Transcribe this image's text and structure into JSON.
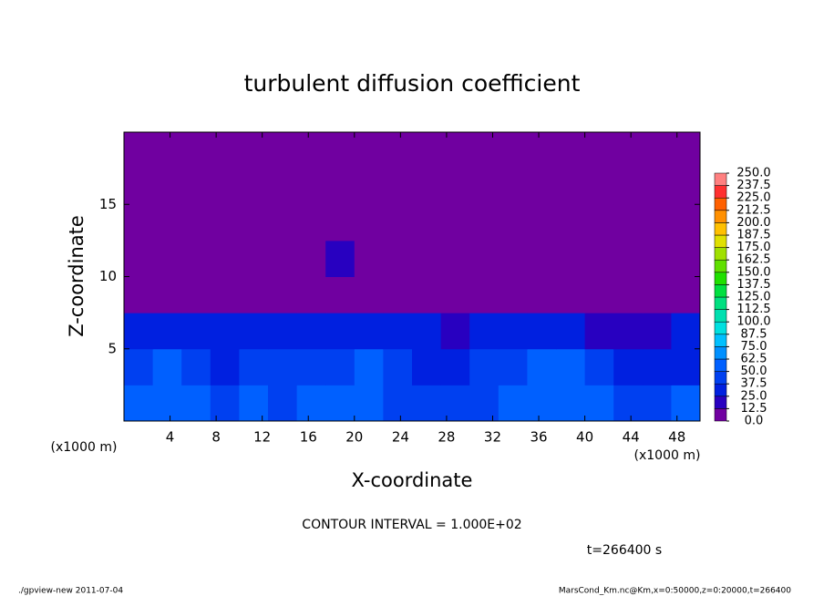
{
  "chart_data": {
    "type": "heatmap",
    "title": "turbulent diffusion coefficient",
    "x_label": "X-coordinate",
    "y_label": "Z-coordinate",
    "x_unit": "(x1000 m)",
    "y_unit": "(x1000 m)",
    "xlim": [
      0,
      50
    ],
    "ylim": [
      0,
      20
    ],
    "xticks": [
      4,
      8,
      12,
      16,
      20,
      24,
      28,
      32,
      36,
      40,
      44,
      48
    ],
    "yticks": [
      5,
      10,
      15
    ],
    "x": [
      1.25,
      3.75,
      6.25,
      8.75,
      11.25,
      13.75,
      16.25,
      18.75,
      21.25,
      23.75,
      26.25,
      28.75,
      31.25,
      33.75,
      36.25,
      38.75,
      41.25,
      43.75,
      46.25,
      48.75
    ],
    "y": [
      1.25,
      3.75,
      6.25,
      8.75,
      11.25,
      13.75,
      16.25,
      18.75
    ],
    "z": [
      [
        60,
        55,
        50,
        45,
        50,
        45,
        50,
        55,
        50,
        45,
        40,
        40,
        45,
        55,
        50,
        60,
        55,
        45,
        45,
        50
      ],
      [
        45,
        55,
        40,
        35,
        40,
        40,
        45,
        45,
        50,
        40,
        35,
        30,
        40,
        45,
        50,
        55,
        40,
        35,
        35,
        35
      ],
      [
        30,
        30,
        25,
        25,
        30,
        30,
        35,
        35,
        35,
        30,
        25,
        20,
        30,
        30,
        30,
        25,
        20,
        20,
        20,
        25
      ],
      [
        5,
        5,
        5,
        5,
        5,
        5,
        5,
        10,
        10,
        5,
        5,
        5,
        5,
        5,
        5,
        5,
        5,
        5,
        5,
        5
      ],
      [
        5,
        5,
        5,
        5,
        5,
        10,
        10,
        15,
        10,
        5,
        5,
        5,
        5,
        5,
        5,
        5,
        5,
        10,
        5,
        5
      ],
      [
        5,
        5,
        5,
        5,
        5,
        5,
        5,
        5,
        5,
        5,
        5,
        5,
        5,
        5,
        10,
        10,
        5,
        10,
        5,
        5
      ],
      [
        5,
        5,
        5,
        5,
        5,
        5,
        5,
        5,
        5,
        5,
        5,
        5,
        5,
        5,
        5,
        5,
        5,
        5,
        5,
        5
      ],
      [
        5,
        5,
        5,
        5,
        5,
        5,
        5,
        5,
        5,
        5,
        5,
        5,
        5,
        5,
        5,
        5,
        5,
        5,
        5,
        5
      ]
    ],
    "levels": [
      {
        "value": 0,
        "label": "0.0"
      },
      12.5,
      {
        "value": 25,
        "label": "25.0"
      },
      37.5,
      {
        "value": 50,
        "label": "50.0"
      },
      62.5,
      {
        "value": 75,
        "label": "75.0"
      },
      87.5,
      {
        "value": 100,
        "label": "100.0"
      },
      112.5,
      {
        "value": 125,
        "label": "125.0"
      },
      137.5,
      {
        "value": 150,
        "label": "150.0"
      },
      162.5,
      {
        "value": 175,
        "label": "175.0"
      },
      187.5,
      {
        "value": 200,
        "label": "200.0"
      },
      212.5,
      {
        "value": 225,
        "label": "225.0"
      },
      237.5,
      {
        "value": 250,
        "label": "250.0"
      }
    ],
    "colors": [
      "#7000a0",
      "#2800c0",
      "#0020e0",
      "#0040f0",
      "#0060ff",
      "#0090ff",
      "#00c0ff",
      "#00e0e0",
      "#00e0b0",
      "#00e080",
      "#00e040",
      "#20e000",
      "#60e000",
      "#a0e000",
      "#e0e000",
      "#ffc000",
      "#ff9000",
      "#ff6000",
      "#ff3030",
      "#ff8080"
    ],
    "contour_interval": "CONTOUR INTERVAL = 1.000E+02",
    "time": "t=266400 s",
    "footer_left": "./gpview-new  2011-07-04",
    "footer_right": "MarsCond_Km.nc@Km,x=0:50000,z=0:20000,t=266400"
  }
}
